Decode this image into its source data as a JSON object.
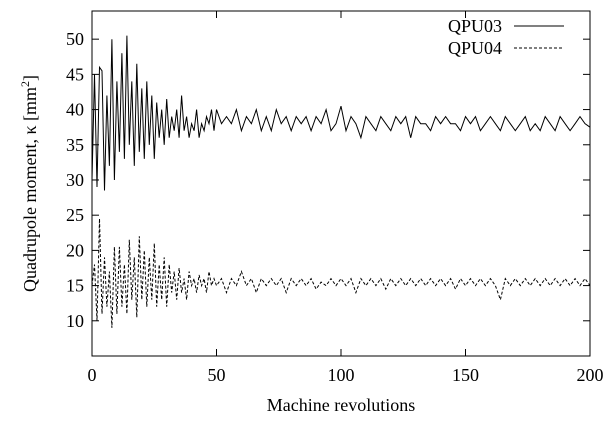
{
  "chart_data": {
    "type": "line",
    "title": "",
    "xlabel": "Machine revolutions",
    "ylabel_main": "Quadrupole moment, κ [mm",
    "ylabel_sup": "2",
    "ylabel_close": "]",
    "xlim": [
      0,
      200
    ],
    "ylim": [
      5,
      54
    ],
    "xticks": [
      0,
      50,
      100,
      150,
      200
    ],
    "yticks": [
      10,
      15,
      20,
      25,
      30,
      35,
      40,
      45,
      50
    ],
    "grid": false,
    "legend_position": "top-right",
    "series": [
      {
        "name": "QPU03",
        "style": "solid",
        "color": "#000000",
        "x": [
          0,
          1,
          2,
          3,
          4,
          5,
          6,
          7,
          8,
          9,
          10,
          11,
          12,
          13,
          14,
          15,
          16,
          17,
          18,
          19,
          20,
          21,
          22,
          23,
          24,
          25,
          26,
          27,
          28,
          29,
          30,
          31,
          32,
          33,
          34,
          35,
          36,
          37,
          38,
          39,
          40,
          41,
          42,
          43,
          44,
          45,
          46,
          47,
          48,
          49,
          50,
          52,
          54,
          56,
          58,
          60,
          62,
          64,
          66,
          68,
          70,
          72,
          74,
          76,
          78,
          80,
          82,
          84,
          86,
          88,
          90,
          92,
          94,
          96,
          98,
          100,
          102,
          104,
          106,
          108,
          110,
          112,
          114,
          116,
          118,
          120,
          122,
          124,
          126,
          128,
          130,
          132,
          134,
          136,
          138,
          140,
          142,
          144,
          146,
          148,
          150,
          152,
          154,
          156,
          158,
          160,
          162,
          164,
          166,
          168,
          170,
          172,
          174,
          176,
          178,
          180,
          182,
          184,
          186,
          188,
          190,
          192,
          194,
          196,
          198,
          200
        ],
        "y": [
          30,
          45,
          29,
          46,
          45.5,
          28.5,
          42,
          32,
          50,
          30,
          44,
          34,
          48,
          33,
          50.5,
          35,
          44,
          32,
          46.5,
          34,
          43,
          33,
          44,
          35,
          42,
          33,
          41,
          36,
          40,
          35,
          41.5,
          36,
          39,
          37,
          40,
          36,
          42,
          37,
          39,
          36,
          38,
          37,
          40,
          36,
          38,
          37,
          39,
          38,
          40,
          37,
          40,
          38,
          39,
          38,
          40,
          37,
          39,
          38,
          40,
          37,
          39,
          37,
          40,
          38,
          39,
          37,
          39,
          38,
          39,
          37,
          39,
          38,
          40,
          37,
          38,
          40.5,
          37,
          39,
          38,
          36,
          39,
          38,
          37,
          39,
          38,
          37,
          39,
          38,
          39,
          36,
          39,
          38,
          38,
          37,
          39,
          38,
          39,
          38,
          38,
          37,
          39,
          38,
          39,
          37,
          38,
          39,
          38,
          37,
          39,
          38,
          37,
          38,
          39,
          37,
          38,
          37,
          39,
          38,
          37,
          39,
          38,
          37,
          38,
          39,
          38,
          37.5
        ]
      },
      {
        "name": "QPU04",
        "style": "dashed",
        "color": "#000000",
        "x": [
          0,
          1,
          2,
          3,
          4,
          5,
          6,
          7,
          8,
          9,
          10,
          11,
          12,
          13,
          14,
          15,
          16,
          17,
          18,
          19,
          20,
          21,
          22,
          23,
          24,
          25,
          26,
          27,
          28,
          29,
          30,
          31,
          32,
          33,
          34,
          35,
          36,
          37,
          38,
          39,
          40,
          41,
          42,
          43,
          44,
          45,
          46,
          47,
          48,
          49,
          50,
          52,
          54,
          56,
          58,
          60,
          62,
          64,
          66,
          68,
          70,
          72,
          74,
          76,
          78,
          80,
          82,
          84,
          86,
          88,
          90,
          92,
          94,
          96,
          98,
          100,
          102,
          104,
          106,
          108,
          110,
          112,
          114,
          116,
          118,
          120,
          122,
          124,
          126,
          128,
          130,
          132,
          134,
          136,
          138,
          140,
          142,
          144,
          146,
          148,
          150,
          152,
          154,
          156,
          158,
          160,
          162,
          164,
          166,
          168,
          170,
          172,
          174,
          176,
          178,
          180,
          182,
          184,
          186,
          188,
          190,
          192,
          194,
          196,
          198,
          200
        ],
        "y": [
          15,
          18,
          10,
          24.5,
          11,
          19,
          12,
          17,
          9,
          20.5,
          11,
          20.5,
          12,
          18,
          11,
          21.5,
          13,
          19,
          10.5,
          22,
          13,
          20,
          12,
          19,
          13,
          21,
          12,
          18,
          13,
          19,
          12,
          18,
          14,
          17,
          13,
          17.5,
          14,
          16,
          13,
          17,
          15,
          16,
          14,
          16.5,
          15,
          16,
          14,
          17,
          15,
          16,
          15,
          16,
          14,
          16,
          15,
          17,
          15,
          16,
          14,
          16,
          15,
          16,
          15,
          16,
          14,
          16,
          15,
          16,
          15,
          16,
          14.5,
          15.5,
          15,
          16,
          15,
          16,
          15,
          16,
          14,
          16,
          15,
          16,
          15,
          16,
          14.5,
          16,
          15,
          16,
          15,
          16,
          15,
          16,
          15,
          16,
          15,
          16,
          15,
          16,
          14.5,
          16,
          15,
          16,
          15,
          16,
          15,
          16,
          15,
          13,
          16,
          15,
          16,
          15,
          16,
          15,
          16,
          15,
          16,
          15,
          16,
          15,
          16,
          15,
          16,
          15,
          16,
          15
        ]
      }
    ]
  }
}
